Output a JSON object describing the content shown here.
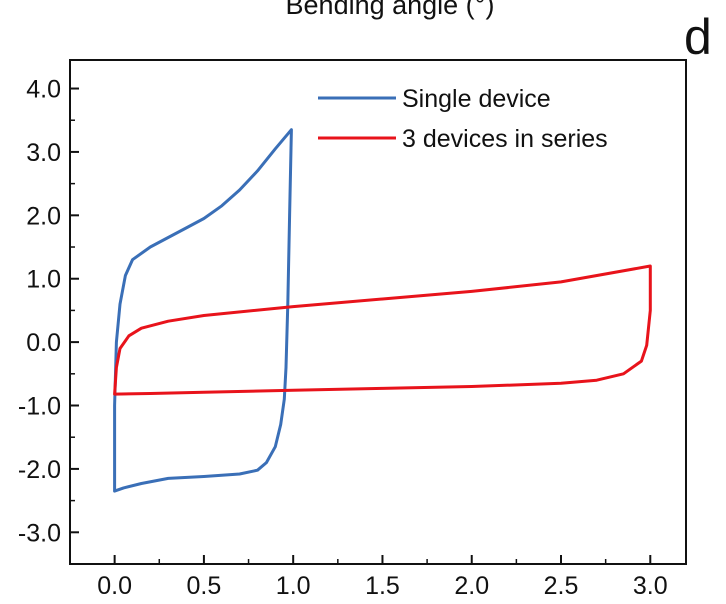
{
  "header": {
    "top_label": "Bending angle (°)",
    "panel_letter": "d"
  },
  "chart_data": {
    "type": "line",
    "title": "",
    "xlabel": "",
    "ylabel": "",
    "xlim": [
      -0.25,
      3.2
    ],
    "ylim": [
      -3.5,
      4.45
    ],
    "xticks": [
      0.0,
      0.5,
      1.0,
      1.5,
      2.0,
      2.5,
      3.0
    ],
    "xtick_labels": [
      "0.0",
      "0.5",
      "1.0",
      "1.5",
      "2.0",
      "2.5",
      "3.0"
    ],
    "yticks": [
      4.0,
      3.0,
      2.0,
      1.0,
      0.0,
      -1.0,
      -2.0,
      -3.0
    ],
    "ytick_labels": [
      "4.0",
      "3.0",
      "2.0",
      "1.0",
      "0.0",
      "-1.0",
      "-2.0",
      "-3.0"
    ],
    "grid": false,
    "legend_position": "top-right",
    "series": [
      {
        "name": "Single device",
        "color": "#3a6fb7",
        "points": [
          [
            0.0,
            -2.35
          ],
          [
            0.0,
            -1.0
          ],
          [
            0.01,
            0.0
          ],
          [
            0.03,
            0.6
          ],
          [
            0.06,
            1.05
          ],
          [
            0.1,
            1.3
          ],
          [
            0.2,
            1.5
          ],
          [
            0.3,
            1.65
          ],
          [
            0.4,
            1.8
          ],
          [
            0.5,
            1.95
          ],
          [
            0.6,
            2.15
          ],
          [
            0.7,
            2.4
          ],
          [
            0.8,
            2.7
          ],
          [
            0.9,
            3.05
          ],
          [
            0.99,
            3.35
          ],
          [
            0.98,
            2.0
          ],
          [
            0.97,
            0.6
          ],
          [
            0.96,
            -0.4
          ],
          [
            0.95,
            -0.9
          ],
          [
            0.93,
            -1.3
          ],
          [
            0.9,
            -1.65
          ],
          [
            0.85,
            -1.9
          ],
          [
            0.8,
            -2.02
          ],
          [
            0.7,
            -2.08
          ],
          [
            0.5,
            -2.12
          ],
          [
            0.3,
            -2.15
          ],
          [
            0.15,
            -2.23
          ],
          [
            0.05,
            -2.3
          ],
          [
            0.0,
            -2.35
          ]
        ]
      },
      {
        "name": "3 devices in series",
        "color": "#e8131b",
        "points": [
          [
            0.0,
            -0.82
          ],
          [
            0.01,
            -0.4
          ],
          [
            0.03,
            -0.1
          ],
          [
            0.08,
            0.1
          ],
          [
            0.15,
            0.22
          ],
          [
            0.3,
            0.33
          ],
          [
            0.5,
            0.42
          ],
          [
            1.0,
            0.56
          ],
          [
            1.5,
            0.68
          ],
          [
            2.0,
            0.8
          ],
          [
            2.5,
            0.95
          ],
          [
            3.0,
            1.2
          ],
          [
            3.0,
            0.5
          ],
          [
            2.98,
            -0.05
          ],
          [
            2.95,
            -0.3
          ],
          [
            2.85,
            -0.5
          ],
          [
            2.7,
            -0.6
          ],
          [
            2.5,
            -0.65
          ],
          [
            2.0,
            -0.7
          ],
          [
            1.5,
            -0.73
          ],
          [
            1.0,
            -0.76
          ],
          [
            0.5,
            -0.79
          ],
          [
            0.2,
            -0.81
          ],
          [
            0.0,
            -0.82
          ]
        ]
      }
    ]
  }
}
